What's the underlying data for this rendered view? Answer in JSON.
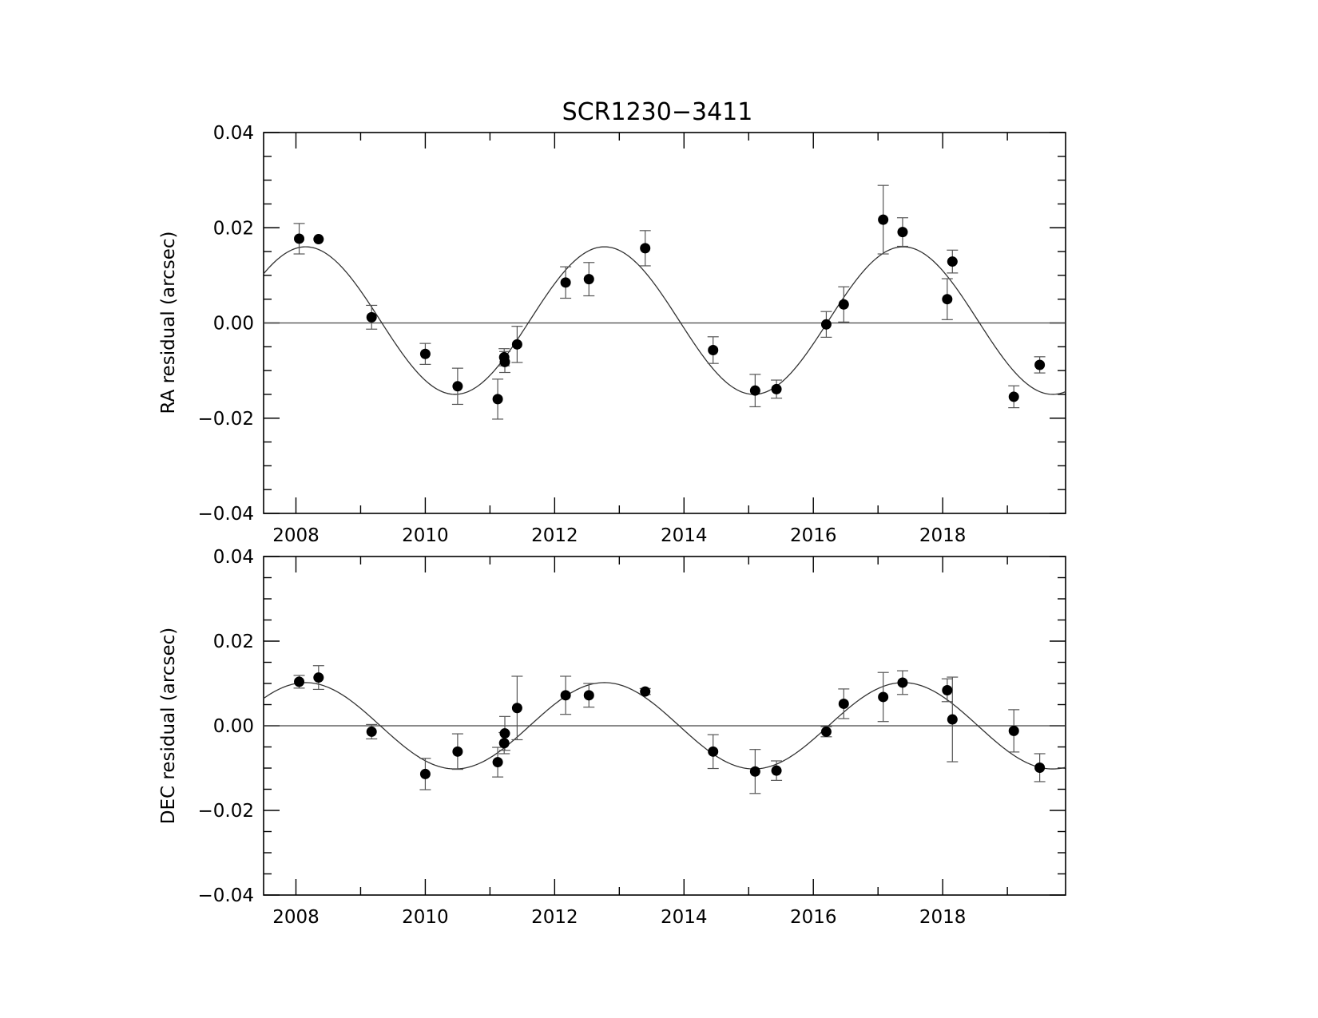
{
  "chart_data": [
    {
      "type": "scatter",
      "title": "SCR1230−3411",
      "xlabel": "",
      "ylabel": "RA residual (arcsec)",
      "xlim": [
        2007.5,
        2019.9
      ],
      "ylim": [
        -0.04,
        0.04
      ],
      "xticks": [
        2008,
        2010,
        2012,
        2014,
        2016,
        2018
      ],
      "xtick_labels": [
        "2008",
        "2010",
        "2012",
        "2014",
        "2016",
        "2018"
      ],
      "yticks": [
        -0.04,
        -0.02,
        0.0,
        0.02,
        0.04
      ],
      "ytick_labels": [
        "−0.04",
        "−0.02",
        "0.00",
        "0.02",
        "0.04"
      ],
      "grid": false,
      "series": [
        {
          "x": [
            2008.05,
            2008.35,
            2009.17,
            2010.0,
            2010.5,
            2011.12,
            2011.22,
            2011.23,
            2011.42,
            2012.17,
            2012.53,
            2013.4,
            2014.45,
            2015.1,
            2015.43,
            2016.2,
            2016.47,
            2017.08,
            2017.38,
            2018.07,
            2018.15,
            2019.1,
            2019.5
          ],
          "y": [
            0.0177,
            0.0176,
            0.0012,
            -0.0065,
            -0.0133,
            -0.016,
            -0.0072,
            -0.0082,
            -0.0045,
            0.0085,
            0.0092,
            0.0157,
            -0.0057,
            -0.0142,
            -0.0139,
            -0.0003,
            0.0039,
            0.0217,
            0.0191,
            0.005,
            0.0129,
            -0.0155,
            -0.0088
          ],
          "yerr": [
            0.0032,
            0.0,
            0.0025,
            0.0022,
            0.0038,
            0.0042,
            0.0018,
            0.0022,
            0.0038,
            0.0033,
            0.0035,
            0.0037,
            0.0028,
            0.0034,
            0.0019,
            0.0027,
            0.0037,
            0.0072,
            0.003,
            0.0043,
            0.0024,
            0.0023,
            0.0017
          ]
        }
      ],
      "model_curve": {
        "zero_line": 0.0,
        "amplitude": 0.0155,
        "offset": 0.0005,
        "period_years": 4.62,
        "peak_epoch": 2008.15
      }
    },
    {
      "type": "scatter",
      "title": "",
      "xlabel": "",
      "ylabel": "DEC residual (arcsec)",
      "xlim": [
        2007.5,
        2019.9
      ],
      "ylim": [
        -0.04,
        0.04
      ],
      "xticks": [
        2008,
        2010,
        2012,
        2014,
        2016,
        2018
      ],
      "xtick_labels": [
        "2008",
        "2010",
        "2012",
        "2014",
        "2016",
        "2018"
      ],
      "yticks": [
        -0.04,
        -0.02,
        0.0,
        0.02,
        0.04
      ],
      "ytick_labels": [
        "−0.04",
        "−0.02",
        "0.00",
        "0.02",
        "0.04"
      ],
      "grid": false,
      "series": [
        {
          "x": [
            2008.05,
            2008.35,
            2009.17,
            2010.0,
            2010.5,
            2011.12,
            2011.22,
            2011.23,
            2011.42,
            2012.17,
            2012.53,
            2013.4,
            2014.45,
            2015.1,
            2015.43,
            2016.2,
            2016.47,
            2017.08,
            2017.38,
            2018.07,
            2018.15,
            2019.1,
            2019.5
          ],
          "y": [
            0.0104,
            0.0114,
            -0.0014,
            -0.0114,
            -0.0061,
            -0.0086,
            -0.0041,
            -0.0018,
            0.0042,
            0.0072,
            0.0072,
            0.0081,
            -0.0061,
            -0.0108,
            -0.0106,
            -0.0014,
            0.0052,
            0.0068,
            0.0102,
            0.0084,
            0.0015,
            -0.0012,
            -0.0099
          ],
          "yerr": [
            0.0015,
            0.0028,
            0.0017,
            0.0037,
            0.0042,
            0.0035,
            0.0025,
            0.004,
            0.0075,
            0.0045,
            0.0028,
            0.0007,
            0.004,
            0.0052,
            0.0023,
            0.0012,
            0.0035,
            0.0058,
            0.0028,
            0.0027,
            0.01,
            0.005,
            0.0033
          ]
        }
      ],
      "model_curve": {
        "zero_line": 0.0,
        "amplitude": 0.0102,
        "offset": 0.0,
        "period_years": 4.62,
        "peak_epoch": 2008.15
      }
    }
  ]
}
